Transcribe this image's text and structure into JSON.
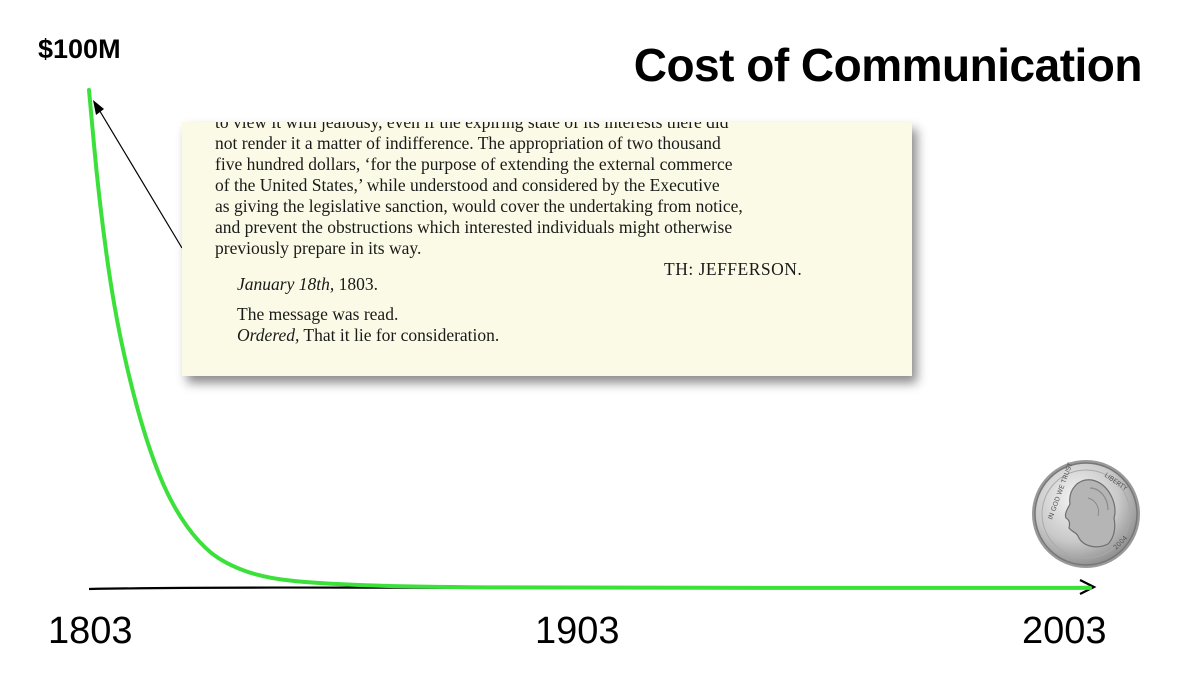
{
  "title": "Cost of Communication",
  "chart_data": {
    "type": "line",
    "x": [
      1803,
      1805,
      1808,
      1812,
      1816,
      1820,
      1825,
      1830,
      1838,
      1850,
      1870,
      1903,
      1950,
      2003
    ],
    "series": [
      {
        "values": [
          100,
          78,
          56,
          38,
          25,
          16,
          9,
          5,
          2,
          0.8,
          0.2,
          0.05,
          0.03,
          0.02
        ]
      }
    ],
    "xlim": [
      1803,
      2003
    ],
    "ylim": [
      0,
      100
    ],
    "y_top_label": "$100M",
    "tick_labels": [
      "1803",
      "1903",
      "2003"
    ],
    "line_color": "#3be03b",
    "axis_color": "#000000"
  },
  "document": {
    "lines": [
      "to view it with jealousy, even if the expiring state of its interests there did",
      "not render it a matter of indifference.  The appropriation of two thousand",
      "five hundred dollars, ‘for the purpose of extending the external commerce",
      "of the United States,’ while understood and considered by the Executive",
      "as giving the legislative sanction, would cover the undertaking from notice,",
      "and prevent the obstructions which interested individuals might otherwise",
      "previously prepare in its way."
    ],
    "signature": "TH: JEFFERSON.",
    "date_italic": "January 18th,",
    "date_year": " 1803.",
    "message": "The message was read.",
    "ordered_italic": "Ordered,",
    "ordered_rest": " That it lie for consideration."
  },
  "coin": {
    "icon": "nickel-coin-icon",
    "inscription_left": "IN GOD WE TRUST",
    "inscription_right": "LIBERTY",
    "year": "2004"
  }
}
